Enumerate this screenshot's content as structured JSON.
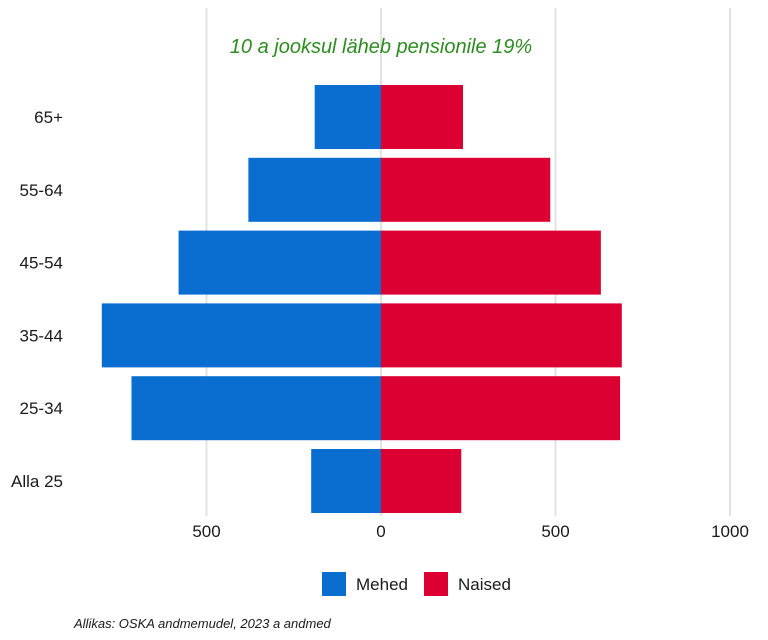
{
  "chart_data": {
    "type": "bar",
    "orientation": "horizontal",
    "layout": "population-pyramid",
    "title": "",
    "annotation": "10 a jooksul läheb pensionile 19%",
    "annotation_color": "#2E8B22",
    "categories": [
      "Alla 25",
      "25-34",
      "35-44",
      "45-54",
      "55-64",
      "65+"
    ],
    "series": [
      {
        "name": "Mehed",
        "color": "#0A6ED1",
        "side": "left",
        "values": [
          200,
          715,
          800,
          580,
          380,
          190
        ]
      },
      {
        "name": "Naised",
        "color": "#DC0032",
        "side": "right",
        "values": [
          230,
          685,
          690,
          630,
          485,
          235
        ]
      }
    ],
    "xticks": [
      {
        "value": -500,
        "label": "500"
      },
      {
        "value": 0,
        "label": "0"
      },
      {
        "value": 500,
        "label": "500"
      },
      {
        "value": 1000,
        "label": "1000"
      }
    ],
    "xlim": [
      -800,
      1000
    ],
    "grid": true,
    "legend_position": "bottom",
    "caption": "Allikas: OSKA andmemudel, 2023 a andmed"
  }
}
